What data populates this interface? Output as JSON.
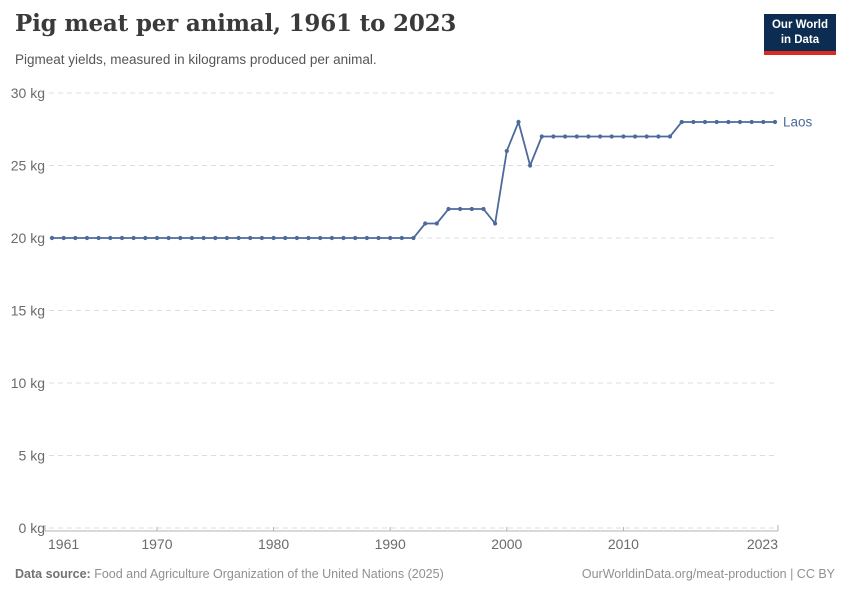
{
  "header": {
    "title": "Pig meat per animal, 1961 to 2023",
    "subtitle": "Pigmeat yields, measured in kilograms produced per animal."
  },
  "logo": {
    "line1": "Our World",
    "line2": "in Data",
    "bg_color": "#0d2c51",
    "accent_color": "#dc2a1f"
  },
  "chart_data": {
    "type": "line",
    "title": "Pig meat per animal, 1961 to 2023",
    "xlabel": "",
    "ylabel": "kg",
    "xlim": [
      1961,
      2023
    ],
    "ylim": [
      0,
      30
    ],
    "grid": true,
    "legend_position": "end-of-line",
    "xticks": [
      1961,
      1970,
      1980,
      1990,
      2000,
      2010,
      2023
    ],
    "yticks": [
      0,
      5,
      10,
      15,
      20,
      25,
      30
    ],
    "ytick_suffix": " kg",
    "series": [
      {
        "name": "Laos",
        "color": "#4c6a9c",
        "years": [
          1961,
          1962,
          1963,
          1964,
          1965,
          1966,
          1967,
          1968,
          1969,
          1970,
          1971,
          1972,
          1973,
          1974,
          1975,
          1976,
          1977,
          1978,
          1979,
          1980,
          1981,
          1982,
          1983,
          1984,
          1985,
          1986,
          1987,
          1988,
          1989,
          1990,
          1991,
          1992,
          1993,
          1994,
          1995,
          1996,
          1997,
          1998,
          1999,
          2000,
          2001,
          2002,
          2003,
          2004,
          2005,
          2006,
          2007,
          2008,
          2009,
          2010,
          2011,
          2012,
          2013,
          2014,
          2015,
          2016,
          2017,
          2018,
          2019,
          2020,
          2021,
          2022,
          2023
        ],
        "values": [
          20,
          20,
          20,
          20,
          20,
          20,
          20,
          20,
          20,
          20,
          20,
          20,
          20,
          20,
          20,
          20,
          20,
          20,
          20,
          20,
          20,
          20,
          20,
          20,
          20,
          20,
          20,
          20,
          20,
          20,
          20,
          20,
          21,
          21,
          22,
          22,
          22,
          22,
          21,
          26,
          28,
          25,
          27,
          27,
          27,
          27,
          27,
          27,
          27,
          27,
          27,
          27,
          27,
          27,
          28,
          28,
          28,
          28,
          28,
          28,
          28,
          28,
          28
        ]
      }
    ]
  },
  "footer": {
    "source_label": "Data source:",
    "source_text": "Food and Agriculture Organization of the United Nations (2025)",
    "credit": "OurWorldinData.org/meat-production | CC BY"
  },
  "colors": {
    "line": "#4c6a9c",
    "grid": "#dcdcdc",
    "axis": "#b3b3b3",
    "tick_label": "#6b6b6b",
    "title": "#3a3a3a",
    "subtitle": "#565656",
    "footer": "#909090"
  }
}
